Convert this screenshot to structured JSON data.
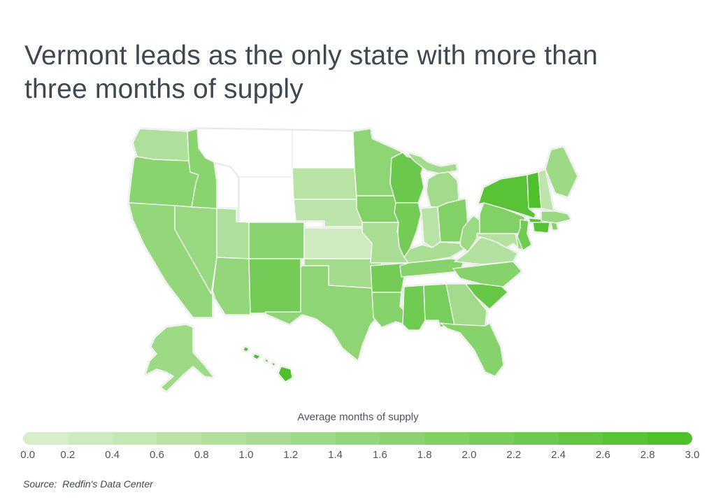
{
  "title": "Vermont leads as the only state with more than three months of supply",
  "legend": {
    "title": "Average months of supply",
    "ticks": [
      "0.0",
      "0.2",
      "0.4",
      "0.6",
      "0.8",
      "1.0",
      "1.2",
      "1.4",
      "1.6",
      "1.8",
      "2.0",
      "2.2",
      "2.4",
      "2.6",
      "2.8",
      "3.0"
    ],
    "min": 0,
    "max": 3,
    "color_min": "#d8edca",
    "color_max": "#4fc02c",
    "no_data_color": "#ffffff"
  },
  "source": {
    "label": "Source:",
    "text": "Redfin's Data Center"
  },
  "chart_data": {
    "type": "choropleth",
    "geography": "United States (states, incl. Alaska and Hawaii)",
    "title": "Vermont leads as the only state with more than three months of supply",
    "metric": "Average months of supply",
    "scale": {
      "min": 0,
      "max": 3,
      "color_min": "#d8edca",
      "color_max": "#4fc02c",
      "no_data": "white"
    },
    "legend_position": "bottom",
    "no_data_states": [
      "Montana",
      "Wyoming",
      "North Dakota"
    ],
    "states": [
      {
        "abbr": "WA",
        "name": "Washington",
        "value": 0.9
      },
      {
        "abbr": "OR",
        "name": "Oregon",
        "value": 1.7
      },
      {
        "abbr": "CA",
        "name": "California",
        "value": 1.5
      },
      {
        "abbr": "NV",
        "name": "Nevada",
        "value": 1.4
      },
      {
        "abbr": "ID",
        "name": "Idaho",
        "value": 1.7
      },
      {
        "abbr": "MT",
        "name": "Montana",
        "value": null
      },
      {
        "abbr": "WY",
        "name": "Wyoming",
        "value": null
      },
      {
        "abbr": "UT",
        "name": "Utah",
        "value": 0.9
      },
      {
        "abbr": "AZ",
        "name": "Arizona",
        "value": 1.5
      },
      {
        "abbr": "CO",
        "name": "Colorado",
        "value": 1.7
      },
      {
        "abbr": "NM",
        "name": "New Mexico",
        "value": 2.2
      },
      {
        "abbr": "ND",
        "name": "North Dakota",
        "value": null
      },
      {
        "abbr": "SD",
        "name": "South Dakota",
        "value": 0.7
      },
      {
        "abbr": "NE",
        "name": "Nebraska",
        "value": 0.6
      },
      {
        "abbr": "KS",
        "name": "Kansas",
        "value": 0.2
      },
      {
        "abbr": "OK",
        "name": "Oklahoma",
        "value": 1.2
      },
      {
        "abbr": "TX",
        "name": "Texas",
        "value": 1.6
      },
      {
        "abbr": "MN",
        "name": "Minnesota",
        "value": 1.6
      },
      {
        "abbr": "IA",
        "name": "Iowa",
        "value": 1.9
      },
      {
        "abbr": "MO",
        "name": "Missouri",
        "value": 1.0
      },
      {
        "abbr": "AR",
        "name": "Arkansas",
        "value": 2.2
      },
      {
        "abbr": "LA",
        "name": "Louisiana",
        "value": 1.8
      },
      {
        "abbr": "WI",
        "name": "Wisconsin",
        "value": 2.4
      },
      {
        "abbr": "IL",
        "name": "Illinois",
        "value": 2.2
      },
      {
        "abbr": "MI",
        "name": "Michigan",
        "value": 1.2
      },
      {
        "abbr": "IN",
        "name": "Indiana",
        "value": 0.7
      },
      {
        "abbr": "OH",
        "name": "Ohio",
        "value": 1.9
      },
      {
        "abbr": "KY",
        "name": "Kentucky",
        "value": 1.0
      },
      {
        "abbr": "TN",
        "name": "Tennessee",
        "value": 1.8
      },
      {
        "abbr": "MS",
        "name": "Mississippi",
        "value": 2.3
      },
      {
        "abbr": "AL",
        "name": "Alabama",
        "value": 2.1
      },
      {
        "abbr": "GA",
        "name": "Georgia",
        "value": 1.2
      },
      {
        "abbr": "FL",
        "name": "Florida",
        "value": 1.8
      },
      {
        "abbr": "SC",
        "name": "South Carolina",
        "value": 2.5
      },
      {
        "abbr": "NC",
        "name": "North Carolina",
        "value": 1.8
      },
      {
        "abbr": "VA",
        "name": "Virginia",
        "value": 0.8
      },
      {
        "abbr": "WV",
        "name": "West Virginia",
        "value": 1.3
      },
      {
        "abbr": "MD",
        "name": "Maryland",
        "value": 0.8
      },
      {
        "abbr": "DE",
        "name": "Delaware",
        "value": 1.4
      },
      {
        "abbr": "PA",
        "name": "Pennsylvania",
        "value": 1.9
      },
      {
        "abbr": "NJ",
        "name": "New Jersey",
        "value": 2.3
      },
      {
        "abbr": "NY",
        "name": "New York",
        "value": 2.8
      },
      {
        "abbr": "CT",
        "name": "Connecticut",
        "value": 2.9
      },
      {
        "abbr": "RI",
        "name": "Rhode Island",
        "value": 1.8
      },
      {
        "abbr": "MA",
        "name": "Massachusetts",
        "value": 1.4
      },
      {
        "abbr": "VT",
        "name": "Vermont",
        "value": 3.1
      },
      {
        "abbr": "NH",
        "name": "New Hampshire",
        "value": 0.6
      },
      {
        "abbr": "ME",
        "name": "Maine",
        "value": 1.3
      },
      {
        "abbr": "AK",
        "name": "Alaska",
        "value": 1.3
      },
      {
        "abbr": "HI",
        "name": "Hawaii",
        "value": 3.0
      }
    ]
  }
}
